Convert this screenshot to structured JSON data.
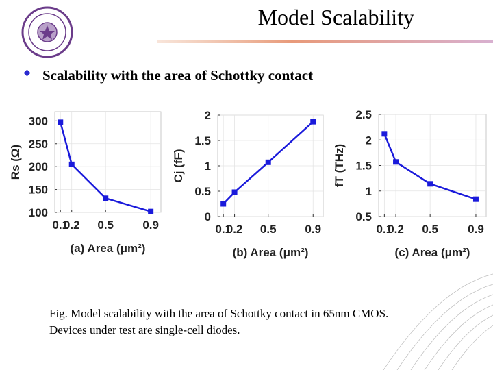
{
  "title": "Model Scalability",
  "bullet": "Scalability with the area of Schottky contact",
  "caption": [
    "Fig.  Model scalability with the area of Schottky contact in 65nm CMOS.",
    "Devices under test are single-cell diodes."
  ],
  "chart_data": [
    {
      "type": "line",
      "xlabel": "(a)  Area (μm²)",
      "ylabel": "Rs (Ω)",
      "x": [
        0.1,
        0.2,
        0.5,
        0.9
      ],
      "series": [
        {
          "color": "#1a1adb",
          "values": [
            297,
            205,
            131,
            102
          ]
        }
      ],
      "xlim": [
        0.05,
        0.99
      ],
      "xticks": [
        0.1,
        0.2,
        0.5,
        0.9
      ],
      "ylim": [
        100,
        320
      ],
      "yticks": [
        100,
        150,
        200,
        250,
        300
      ],
      "grid": true
    },
    {
      "type": "line",
      "xlabel": "(b)  Area (μm²)",
      "ylabel": "Cj (fF)",
      "x": [
        0.1,
        0.2,
        0.5,
        0.9
      ],
      "series": [
        {
          "color": "#1a1adb",
          "values": [
            0.25,
            0.48,
            1.07,
            1.87
          ]
        }
      ],
      "xlim": [
        0.05,
        0.99
      ],
      "xticks": [
        0.1,
        0.2,
        0.5,
        0.9
      ],
      "ylim": [
        0,
        2
      ],
      "yticks": [
        0,
        0.5,
        1,
        1.5,
        2
      ],
      "grid": true
    },
    {
      "type": "line",
      "xlabel": "(c)  Area (μm²)",
      "ylabel": "fT (THz)",
      "x": [
        0.1,
        0.2,
        0.5,
        0.9
      ],
      "series": [
        {
          "color": "#1a1adb",
          "values": [
            2.12,
            1.57,
            1.14,
            0.84
          ]
        }
      ],
      "xlim": [
        0.05,
        0.99
      ],
      "xticks": [
        0.1,
        0.2,
        0.5,
        0.9
      ],
      "ylim": [
        0.5,
        2.5
      ],
      "yticks": [
        0.5,
        1,
        1.5,
        2,
        2.5
      ],
      "grid": true
    }
  ]
}
